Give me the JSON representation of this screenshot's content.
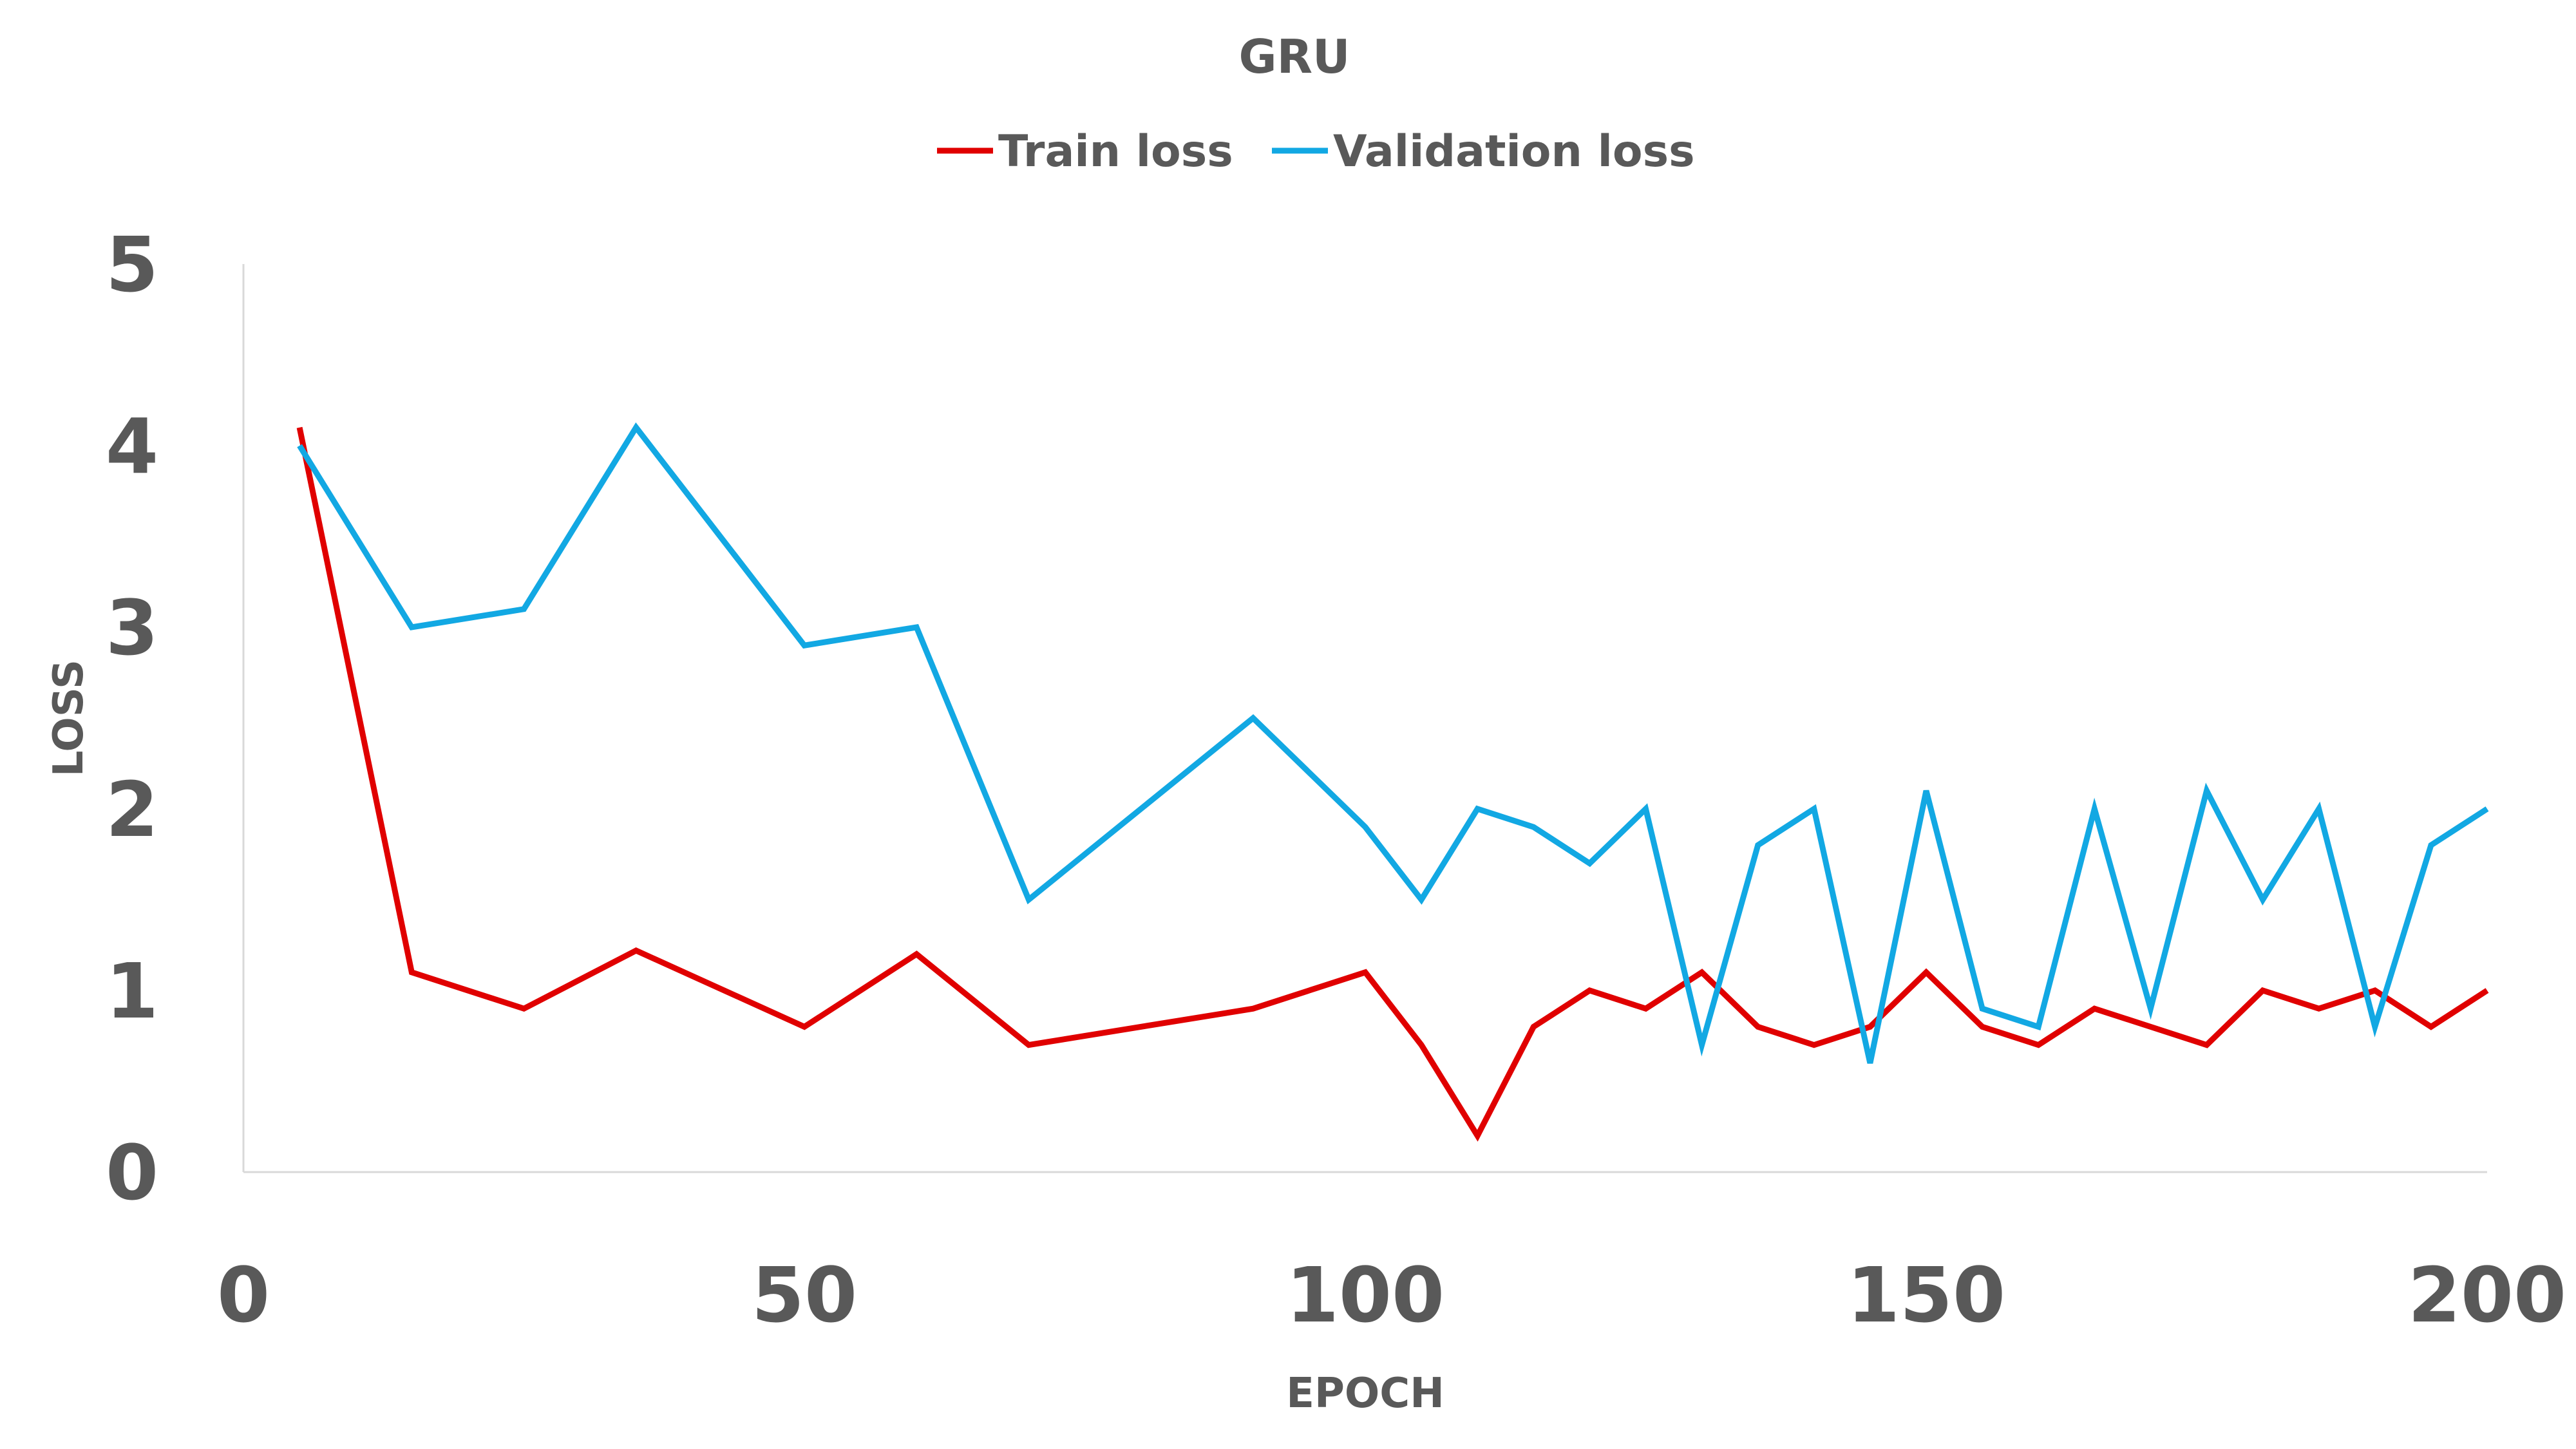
{
  "chart_data": {
    "type": "line",
    "title": "GRU",
    "xlabel": "EPOCH",
    "ylabel": "LOSS",
    "xlim": [
      0,
      200
    ],
    "ylim": [
      0,
      5
    ],
    "x_ticks": [
      "0",
      "50",
      "100",
      "150",
      "200"
    ],
    "y_ticks": [
      "0",
      "1",
      "2",
      "3",
      "4",
      "5"
    ],
    "grid": false,
    "legend_position": "top",
    "series": [
      {
        "name": "Train loss",
        "color": "#e00000",
        "x": [
          5,
          15,
          25,
          35,
          50,
          60,
          70,
          90,
          100,
          105,
          110,
          115,
          120,
          125,
          130,
          135,
          140,
          145,
          150,
          155,
          160,
          165,
          170,
          175,
          180,
          185,
          190,
          195,
          200
        ],
        "y": [
          4.1,
          1.1,
          0.9,
          1.22,
          0.8,
          1.2,
          0.7,
          0.9,
          1.1,
          0.7,
          0.2,
          0.8,
          1.0,
          0.9,
          1.1,
          0.8,
          0.7,
          0.8,
          1.1,
          0.8,
          0.7,
          0.9,
          0.8,
          0.7,
          1.0,
          0.9,
          1.0,
          0.8,
          1.0
        ]
      },
      {
        "name": "Validation loss",
        "color": "#12a8e3",
        "x": [
          5,
          15,
          25,
          35,
          50,
          60,
          70,
          90,
          100,
          105,
          110,
          115,
          120,
          125,
          130,
          135,
          140,
          145,
          150,
          155,
          160,
          165,
          170,
          175,
          180,
          185,
          190,
          195,
          200
        ],
        "y": [
          4.0,
          3.0,
          3.1,
          4.1,
          2.9,
          3.0,
          1.5,
          2.5,
          1.9,
          1.5,
          2.0,
          1.9,
          1.7,
          2.0,
          0.7,
          1.8,
          2.0,
          0.6,
          2.1,
          0.9,
          0.8,
          2.0,
          0.9,
          2.1,
          1.5,
          2.0,
          0.8,
          1.8,
          2.0
        ]
      }
    ]
  }
}
